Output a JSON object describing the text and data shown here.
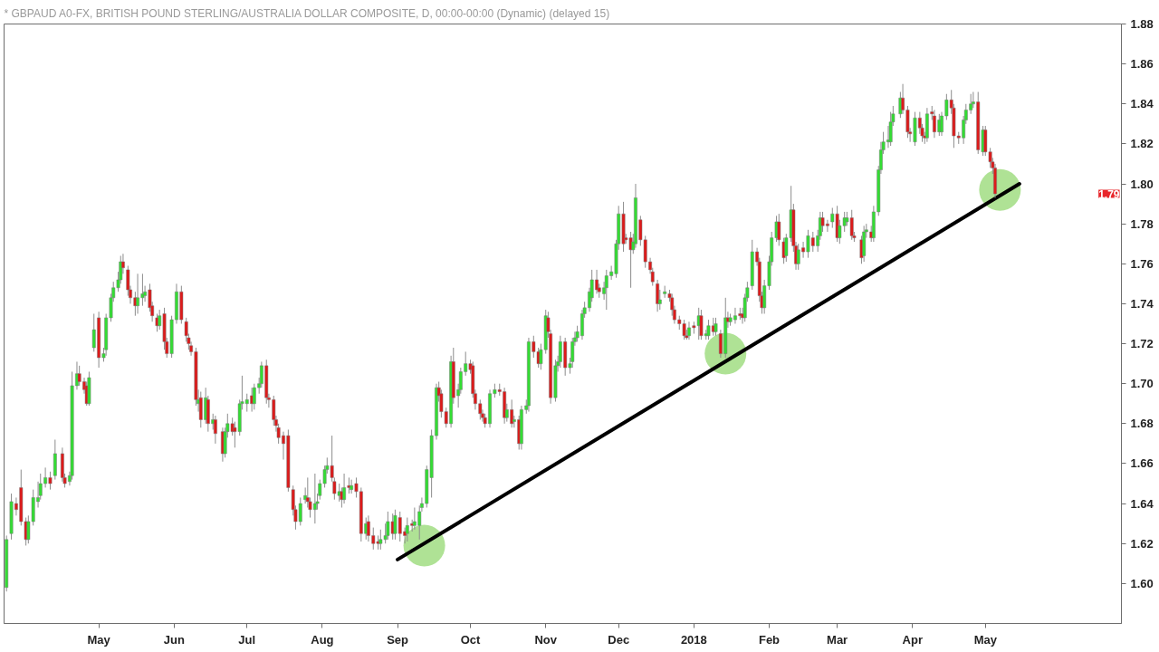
{
  "chart_data": {
    "type": "candlestick",
    "title": "* GBPAUD A0-FX, BRITISH POUND STERLING/AUSTRALIA DOLLAR COMPOSITE, D, 00:00-00:00 (Dynamic) (delayed 15)",
    "x": [
      "2017-03-24",
      "2017-03-26",
      "2017-03-28",
      "2017-03-30",
      "2017-04-01",
      "2017-04-02",
      "2017-04-04",
      "2017-04-06",
      "2017-04-07",
      "2017-04-09",
      "2017-04-11",
      "2017-04-13",
      "2017-04-16",
      "2017-04-17",
      "2017-04-19",
      "2017-04-20",
      "2017-04-22",
      "2017-04-23",
      "2017-04-25",
      "2017-04-26",
      "2017-04-27",
      "2017-04-29",
      "2017-05-01",
      "2017-05-03",
      "2017-05-04",
      "2017-05-06",
      "2017-05-07",
      "2017-05-09",
      "2017-05-10",
      "2017-05-11",
      "2017-05-13",
      "2017-05-14",
      "2017-05-16",
      "2017-05-17",
      "2017-05-19",
      "2017-05-20",
      "2017-05-22",
      "2017-05-23",
      "2017-05-25",
      "2017-05-26",
      "2017-05-28",
      "2017-05-29",
      "2017-05-31",
      "2017-06-02",
      "2017-06-04",
      "2017-06-06",
      "2017-06-07",
      "2017-06-08",
      "2017-06-10",
      "2017-06-11",
      "2017-06-12",
      "2017-06-14",
      "2017-06-15",
      "2017-06-17",
      "2017-06-18",
      "2017-06-21",
      "2017-06-22",
      "2017-06-23",
      "2017-06-25",
      "2017-06-26",
      "2017-06-28",
      "2017-06-29",
      "2017-07-01",
      "2017-07-03",
      "2017-07-04",
      "2017-07-06",
      "2017-07-07",
      "2017-07-09",
      "2017-07-10",
      "2017-07-12",
      "2017-07-13",
      "2017-07-14",
      "2017-07-16",
      "2017-07-18",
      "2017-07-20",
      "2017-07-21",
      "2017-07-23",
      "2017-07-25",
      "2017-07-26",
      "2017-07-27",
      "2017-07-29",
      "2017-07-30",
      "2017-07-31",
      "2017-08-02",
      "2017-08-03",
      "2017-08-05",
      "2017-08-06",
      "2017-08-08",
      "2017-08-09",
      "2017-08-10",
      "2017-08-12",
      "2017-08-13",
      "2017-08-15",
      "2017-08-17",
      "2017-08-19",
      "2017-08-20",
      "2017-08-22",
      "2017-08-24",
      "2017-08-25",
      "2017-08-27",
      "2017-08-28",
      "2017-08-30",
      "2017-08-31",
      "2017-09-02",
      "2017-09-04",
      "2017-09-05",
      "2017-09-07",
      "2017-09-08",
      "2017-09-10",
      "2017-09-11",
      "2017-09-13",
      "2017-09-15",
      "2017-09-17",
      "2017-09-18",
      "2017-09-19",
      "2017-09-21",
      "2017-09-23",
      "2017-09-24",
      "2017-09-26",
      "2017-09-27",
      "2017-09-29",
      "2017-10-01",
      "2017-10-02",
      "2017-10-03",
      "2017-10-05",
      "2017-10-06",
      "2017-10-07",
      "2017-10-09",
      "2017-10-11",
      "2017-10-13",
      "2017-10-15",
      "2017-10-16",
      "2017-10-18",
      "2017-10-19",
      "2017-10-21",
      "2017-10-22",
      "2017-10-24",
      "2017-10-25",
      "2017-10-27",
      "2017-10-29",
      "2017-10-30",
      "2017-11-01",
      "2017-11-02",
      "2017-11-03",
      "2017-11-05",
      "2017-11-06",
      "2017-11-07",
      "2017-11-09",
      "2017-11-11",
      "2017-11-12",
      "2017-11-13",
      "2017-11-14",
      "2017-11-16",
      "2017-11-17",
      "2017-11-19",
      "2017-11-20",
      "2017-11-22",
      "2017-11-23",
      "2017-11-25",
      "2017-11-26",
      "2017-11-28",
      "2017-11-30",
      "2017-12-01",
      "2017-12-03",
      "2017-12-04",
      "2017-12-06",
      "2017-12-07",
      "2017-12-08",
      "2017-12-10",
      "2017-12-12",
      "2017-12-14",
      "2017-12-15",
      "2017-12-17",
      "2017-12-18",
      "2017-12-20",
      "2017-12-22",
      "2017-12-23",
      "2017-12-24",
      "2017-12-26",
      "2017-12-28",
      "2017-12-29",
      "2017-12-30",
      "2018-01-01",
      "2018-01-03",
      "2018-01-04",
      "2018-01-06",
      "2018-01-07",
      "2018-01-09",
      "2018-01-10",
      "2018-01-12",
      "2018-01-14",
      "2018-01-15",
      "2018-01-16",
      "2018-01-18",
      "2018-01-20",
      "2018-01-21",
      "2018-01-22",
      "2018-01-23",
      "2018-01-25",
      "2018-01-27",
      "2018-01-28",
      "2018-01-29",
      "2018-01-30",
      "2018-02-01",
      "2018-02-02",
      "2018-02-04",
      "2018-02-05",
      "2018-02-07",
      "2018-02-08",
      "2018-02-10",
      "2018-02-11",
      "2018-02-12",
      "2018-02-13",
      "2018-02-15",
      "2018-02-17",
      "2018-02-19",
      "2018-02-21",
      "2018-02-22",
      "2018-02-23",
      "2018-02-25",
      "2018-02-27",
      "2018-03-01",
      "2018-03-02",
      "2018-03-04",
      "2018-03-05",
      "2018-03-07",
      "2018-03-08",
      "2018-03-11",
      "2018-03-12",
      "2018-03-13",
      "2018-03-15",
      "2018-03-16",
      "2018-03-18",
      "2018-03-19",
      "2018-03-20",
      "2018-03-22",
      "2018-03-23",
      "2018-03-24",
      "2018-03-27",
      "2018-03-28",
      "2018-03-30",
      "2018-03-31",
      "2018-04-02",
      "2018-04-04",
      "2018-04-05",
      "2018-04-06",
      "2018-04-07",
      "2018-04-09",
      "2018-04-10",
      "2018-04-12",
      "2018-04-13",
      "2018-04-15",
      "2018-04-17",
      "2018-04-18",
      "2018-04-20",
      "2018-04-22",
      "2018-04-23",
      "2018-04-25",
      "2018-04-26",
      "2018-04-28",
      "2018-04-30",
      "2018-05-01",
      "2018-05-03",
      "2018-05-04",
      "2018-05-05"
    ],
    "ohlc": [
      [
        1.598,
        1.624,
        1.596,
        1.622
      ],
      [
        1.625,
        1.645,
        1.622,
        1.641
      ],
      [
        1.64,
        1.643,
        1.634,
        1.637
      ],
      [
        1.648,
        1.657,
        1.629,
        1.631
      ],
      [
        1.631,
        1.633,
        1.619,
        1.622
      ],
      [
        1.622,
        1.634,
        1.62,
        1.631
      ],
      [
        1.631,
        1.647,
        1.629,
        1.643
      ],
      [
        1.641,
        1.651,
        1.638,
        1.643
      ],
      [
        1.644,
        1.655,
        1.642,
        1.65
      ],
      [
        1.65,
        1.658,
        1.648,
        1.653
      ],
      [
        1.653,
        1.656,
        1.647,
        1.65
      ],
      [
        1.654,
        1.672,
        1.652,
        1.665
      ],
      [
        1.665,
        1.668,
        1.651,
        1.653
      ],
      [
        1.653,
        1.655,
        1.648,
        1.65
      ],
      [
        1.651,
        1.656,
        1.649,
        1.654
      ],
      [
        1.654,
        1.706,
        1.652,
        1.699
      ],
      [
        1.699,
        1.711,
        1.697,
        1.705
      ],
      [
        1.705,
        1.709,
        1.699,
        1.701
      ],
      [
        1.701,
        1.703,
        1.695,
        1.697
      ],
      [
        1.699,
        1.701,
        1.689,
        1.69
      ],
      [
        1.69,
        1.706,
        1.689,
        1.703
      ],
      [
        1.718,
        1.735,
        1.716,
        1.727
      ],
      [
        1.733,
        1.736,
        1.708,
        1.713
      ],
      [
        1.713,
        1.718,
        1.711,
        1.715
      ],
      [
        1.717,
        1.735,
        1.714,
        1.733
      ],
      [
        1.733,
        1.745,
        1.731,
        1.743
      ],
      [
        1.743,
        1.751,
        1.741,
        1.748
      ],
      [
        1.748,
        1.756,
        1.746,
        1.752
      ],
      [
        1.752,
        1.764,
        1.75,
        1.761
      ],
      [
        1.761,
        1.765,
        1.755,
        1.758
      ],
      [
        1.757,
        1.759,
        1.744,
        1.747
      ],
      [
        1.747,
        1.749,
        1.74,
        1.743
      ],
      [
        1.743,
        1.746,
        1.734,
        1.739
      ],
      [
        1.739,
        1.755,
        1.735,
        1.743
      ],
      [
        1.743,
        1.755,
        1.739,
        1.745
      ],
      [
        1.744,
        1.749,
        1.741,
        1.746
      ],
      [
        1.747,
        1.75,
        1.736,
        1.738
      ],
      [
        1.739,
        1.741,
        1.731,
        1.734
      ],
      [
        1.733,
        1.735,
        1.726,
        1.729
      ],
      [
        1.729,
        1.737,
        1.727,
        1.734
      ],
      [
        1.735,
        1.738,
        1.717,
        1.721
      ],
      [
        1.721,
        1.723,
        1.713,
        1.715
      ],
      [
        1.715,
        1.734,
        1.713,
        1.732
      ],
      [
        1.732,
        1.75,
        1.73,
        1.746
      ],
      [
        1.746,
        1.749,
        1.73,
        1.732
      ],
      [
        1.731,
        1.733,
        1.721,
        1.724
      ],
      [
        1.723,
        1.725,
        1.717,
        1.72
      ],
      [
        1.719,
        1.721,
        1.714,
        1.716
      ],
      [
        1.716,
        1.718,
        1.689,
        1.692
      ],
      [
        1.69,
        1.697,
        1.686,
        1.692
      ],
      [
        1.693,
        1.696,
        1.678,
        1.682
      ],
      [
        1.682,
        1.698,
        1.68,
        1.693
      ],
      [
        1.692,
        1.694,
        1.676,
        1.68
      ],
      [
        1.68,
        1.685,
        1.677,
        1.682
      ],
      [
        1.682,
        1.684,
        1.67,
        1.675
      ],
      [
        1.676,
        1.678,
        1.661,
        1.665
      ],
      [
        1.665,
        1.678,
        1.663,
        1.676
      ],
      [
        1.676,
        1.685,
        1.673,
        1.68
      ],
      [
        1.68,
        1.683,
        1.674,
        1.676
      ],
      [
        1.678,
        1.681,
        1.668,
        1.676
      ],
      [
        1.676,
        1.692,
        1.674,
        1.69
      ],
      [
        1.69,
        1.704,
        1.687,
        1.691
      ],
      [
        1.69,
        1.695,
        1.686,
        1.692
      ],
      [
        1.694,
        1.698,
        1.686,
        1.69
      ],
      [
        1.69,
        1.7,
        1.687,
        1.698
      ],
      [
        1.698,
        1.703,
        1.695,
        1.7
      ],
      [
        1.7,
        1.711,
        1.698,
        1.709
      ],
      [
        1.709,
        1.712,
        1.69,
        1.693
      ],
      [
        1.693,
        1.695,
        1.688,
        1.692
      ],
      [
        1.692,
        1.694,
        1.679,
        1.682
      ],
      [
        1.682,
        1.684,
        1.676,
        1.679
      ],
      [
        1.678,
        1.68,
        1.67,
        1.673
      ],
      [
        1.674,
        1.676,
        1.662,
        1.67
      ],
      [
        1.674,
        1.677,
        1.646,
        1.648
      ],
      [
        1.647,
        1.649,
        1.634,
        1.637
      ],
      [
        1.637,
        1.639,
        1.627,
        1.631
      ],
      [
        1.631,
        1.643,
        1.629,
        1.64
      ],
      [
        1.642,
        1.648,
        1.64,
        1.644
      ],
      [
        1.643,
        1.653,
        1.638,
        1.641
      ],
      [
        1.641,
        1.643,
        1.633,
        1.637
      ],
      [
        1.637,
        1.655,
        1.63,
        1.64
      ],
      [
        1.64,
        1.645,
        1.637,
        1.641
      ],
      [
        1.644,
        1.652,
        1.642,
        1.65
      ],
      [
        1.65,
        1.659,
        1.648,
        1.657
      ],
      [
        1.657,
        1.663,
        1.655,
        1.659
      ],
      [
        1.659,
        1.674,
        1.651,
        1.653
      ],
      [
        1.651,
        1.653,
        1.642,
        1.645
      ],
      [
        1.644,
        1.65,
        1.641,
        1.646
      ],
      [
        1.646,
        1.648,
        1.638,
        1.642
      ],
      [
        1.642,
        1.655,
        1.64,
        1.648
      ],
      [
        1.649,
        1.653,
        1.645,
        1.648
      ],
      [
        1.647,
        1.652,
        1.645,
        1.649
      ],
      [
        1.65,
        1.653,
        1.643,
        1.646
      ],
      [
        1.646,
        1.648,
        1.621,
        1.625
      ],
      [
        1.625,
        1.633,
        1.622,
        1.63
      ],
      [
        1.631,
        1.634,
        1.621,
        1.624
      ],
      [
        1.624,
        1.628,
        1.617,
        1.62
      ],
      [
        1.621,
        1.624,
        1.617,
        1.62
      ],
      [
        1.62,
        1.627,
        1.617,
        1.622
      ],
      [
        1.622,
        1.63,
        1.62,
        1.624
      ],
      [
        1.624,
        1.636,
        1.622,
        1.631
      ],
      [
        1.631,
        1.635,
        1.622,
        1.625
      ],
      [
        1.625,
        1.637,
        1.622,
        1.634
      ],
      [
        1.633,
        1.636,
        1.621,
        1.625
      ],
      [
        1.626,
        1.628,
        1.62,
        1.624
      ],
      [
        1.625,
        1.633,
        1.621,
        1.629
      ],
      [
        1.63,
        1.632,
        1.626,
        1.629
      ],
      [
        1.629,
        1.638,
        1.627,
        1.631
      ],
      [
        1.629,
        1.639,
        1.622,
        1.636
      ],
      [
        1.638,
        1.643,
        1.636,
        1.64
      ],
      [
        1.64,
        1.659,
        1.638,
        1.657
      ],
      [
        1.653,
        1.677,
        1.643,
        1.674
      ],
      [
        1.674,
        1.7,
        1.672,
        1.698
      ],
      [
        1.698,
        1.701,
        1.691,
        1.694
      ],
      [
        1.695,
        1.697,
        1.683,
        1.686
      ],
      [
        1.686,
        1.688,
        1.678,
        1.68
      ],
      [
        1.68,
        1.714,
        1.678,
        1.711
      ],
      [
        1.711,
        1.718,
        1.69,
        1.693
      ],
      [
        1.694,
        1.7,
        1.688,
        1.697
      ],
      [
        1.697,
        1.708,
        1.695,
        1.706
      ],
      [
        1.706,
        1.716,
        1.704,
        1.71
      ],
      [
        1.71,
        1.712,
        1.705,
        1.707
      ],
      [
        1.709,
        1.711,
        1.693,
        1.695
      ],
      [
        1.695,
        1.697,
        1.687,
        1.69
      ],
      [
        1.69,
        1.692,
        1.682,
        1.685
      ],
      [
        1.685,
        1.687,
        1.681,
        1.683
      ],
      [
        1.683,
        1.685,
        1.678,
        1.68
      ],
      [
        1.68,
        1.697,
        1.678,
        1.695
      ],
      [
        1.695,
        1.7,
        1.693,
        1.697
      ],
      [
        1.697,
        1.7,
        1.694,
        1.696
      ],
      [
        1.696,
        1.698,
        1.68,
        1.683
      ],
      [
        1.683,
        1.69,
        1.681,
        1.687
      ],
      [
        1.687,
        1.692,
        1.678,
        1.68
      ],
      [
        1.681,
        1.684,
        1.678,
        1.682
      ],
      [
        1.682,
        1.684,
        1.667,
        1.67
      ],
      [
        1.67,
        1.689,
        1.667,
        1.687
      ],
      [
        1.687,
        1.692,
        1.685,
        1.689
      ],
      [
        1.689,
        1.723,
        1.686,
        1.721
      ],
      [
        1.721,
        1.724,
        1.713,
        1.716
      ],
      [
        1.716,
        1.718,
        1.708,
        1.71
      ],
      [
        1.71,
        1.72,
        1.707,
        1.717
      ],
      [
        1.717,
        1.737,
        1.715,
        1.734
      ],
      [
        1.733,
        1.736,
        1.723,
        1.726
      ],
      [
        1.725,
        1.727,
        1.69,
        1.693
      ],
      [
        1.693,
        1.712,
        1.691,
        1.709
      ],
      [
        1.709,
        1.714,
        1.706,
        1.711
      ],
      [
        1.711,
        1.724,
        1.708,
        1.721
      ],
      [
        1.721,
        1.723,
        1.704,
        1.708
      ],
      [
        1.708,
        1.713,
        1.705,
        1.71
      ],
      [
        1.711,
        1.723,
        1.708,
        1.721
      ],
      [
        1.721,
        1.726,
        1.719,
        1.723
      ],
      [
        1.723,
        1.729,
        1.721,
        1.726
      ],
      [
        1.724,
        1.737,
        1.722,
        1.735
      ],
      [
        1.735,
        1.741,
        1.733,
        1.738
      ],
      [
        1.738,
        1.748,
        1.736,
        1.746
      ],
      [
        1.743,
        1.757,
        1.741,
        1.752
      ],
      [
        1.752,
        1.757,
        1.745,
        1.747
      ],
      [
        1.748,
        1.75,
        1.743,
        1.746
      ],
      [
        1.745,
        1.751,
        1.742,
        1.748
      ],
      [
        1.748,
        1.757,
        1.737,
        1.754
      ],
      [
        1.754,
        1.759,
        1.752,
        1.756
      ],
      [
        1.755,
        1.772,
        1.753,
        1.77
      ],
      [
        1.77,
        1.789,
        1.767,
        1.785
      ],
      [
        1.785,
        1.791,
        1.766,
        1.77
      ],
      [
        1.773,
        1.775,
        1.77,
        1.772
      ],
      [
        1.773,
        1.776,
        1.748,
        1.767
      ],
      [
        1.767,
        1.775,
        1.765,
        1.771
      ],
      [
        1.77,
        1.8,
        1.768,
        1.793
      ],
      [
        1.782,
        1.784,
        1.769,
        1.772
      ],
      [
        1.772,
        1.774,
        1.758,
        1.761
      ],
      [
        1.761,
        1.763,
        1.755,
        1.757
      ],
      [
        1.756,
        1.758,
        1.749,
        1.751
      ],
      [
        1.75,
        1.752,
        1.736,
        1.74
      ],
      [
        1.74,
        1.747,
        1.737,
        1.742
      ],
      [
        1.745,
        1.749,
        1.743,
        1.746
      ],
      [
        1.745,
        1.747,
        1.741,
        1.743
      ],
      [
        1.743,
        1.745,
        1.734,
        1.737
      ],
      [
        1.737,
        1.739,
        1.73,
        1.732
      ],
      [
        1.732,
        1.734,
        1.727,
        1.73
      ],
      [
        1.73,
        1.732,
        1.722,
        1.724
      ],
      [
        1.724,
        1.727,
        1.722,
        1.723
      ],
      [
        1.724,
        1.731,
        1.722,
        1.728
      ],
      [
        1.729,
        1.731,
        1.725,
        1.728
      ],
      [
        1.729,
        1.738,
        1.722,
        1.734
      ],
      [
        1.734,
        1.737,
        1.722,
        1.724
      ],
      [
        1.724,
        1.727,
        1.722,
        1.725
      ],
      [
        1.724,
        1.732,
        1.722,
        1.729
      ],
      [
        1.729,
        1.733,
        1.724,
        1.726
      ],
      [
        1.726,
        1.733,
        1.724,
        1.73
      ],
      [
        1.725,
        1.727,
        1.713,
        1.715
      ],
      [
        1.715,
        1.743,
        1.713,
        1.733
      ],
      [
        1.733,
        1.736,
        1.728,
        1.731
      ],
      [
        1.731,
        1.735,
        1.729,
        1.733
      ],
      [
        1.732,
        1.738,
        1.73,
        1.734
      ],
      [
        1.735,
        1.738,
        1.732,
        1.734
      ],
      [
        1.735,
        1.738,
        1.73,
        1.733
      ],
      [
        1.733,
        1.745,
        1.731,
        1.743
      ],
      [
        1.743,
        1.751,
        1.741,
        1.748
      ],
      [
        1.749,
        1.772,
        1.747,
        1.766
      ],
      [
        1.766,
        1.768,
        1.759,
        1.761
      ],
      [
        1.761,
        1.763,
        1.741,
        1.744
      ],
      [
        1.744,
        1.746,
        1.735,
        1.738
      ],
      [
        1.738,
        1.752,
        1.735,
        1.749
      ],
      [
        1.749,
        1.764,
        1.747,
        1.761
      ],
      [
        1.761,
        1.776,
        1.759,
        1.773
      ],
      [
        1.773,
        1.784,
        1.771,
        1.781
      ],
      [
        1.781,
        1.785,
        1.769,
        1.772
      ],
      [
        1.771,
        1.773,
        1.76,
        1.763
      ],
      [
        1.764,
        1.775,
        1.761,
        1.773
      ],
      [
        1.773,
        1.799,
        1.771,
        1.787
      ],
      [
        1.787,
        1.79,
        1.766,
        1.769
      ],
      [
        1.769,
        1.771,
        1.757,
        1.76
      ],
      [
        1.76,
        1.77,
        1.757,
        1.767
      ],
      [
        1.768,
        1.771,
        1.763,
        1.766
      ],
      [
        1.766,
        1.777,
        1.763,
        1.774
      ],
      [
        1.773,
        1.776,
        1.766,
        1.769
      ],
      [
        1.769,
        1.777,
        1.766,
        1.774
      ],
      [
        1.774,
        1.786,
        1.772,
        1.783
      ],
      [
        1.783,
        1.786,
        1.776,
        1.779
      ],
      [
        1.78,
        1.782,
        1.776,
        1.779
      ],
      [
        1.781,
        1.788,
        1.778,
        1.785
      ],
      [
        1.785,
        1.789,
        1.771,
        1.773
      ],
      [
        1.773,
        1.782,
        1.77,
        1.779
      ],
      [
        1.779,
        1.786,
        1.776,
        1.783
      ],
      [
        1.781,
        1.786,
        1.779,
        1.783
      ],
      [
        1.783,
        1.787,
        1.772,
        1.774
      ],
      [
        1.774,
        1.776,
        1.771,
        1.773
      ],
      [
        1.772,
        1.774,
        1.76,
        1.763
      ],
      [
        1.764,
        1.779,
        1.761,
        1.776
      ],
      [
        1.776,
        1.78,
        1.773,
        1.777
      ],
      [
        1.776,
        1.779,
        1.771,
        1.773
      ],
      [
        1.773,
        1.789,
        1.771,
        1.786
      ],
      [
        1.786,
        1.809,
        1.784,
        1.807
      ],
      [
        1.807,
        1.821,
        1.805,
        1.817
      ],
      [
        1.817,
        1.826,
        1.815,
        1.821
      ],
      [
        1.821,
        1.829,
        1.818,
        1.822
      ],
      [
        1.821,
        1.836,
        1.819,
        1.831
      ],
      [
        1.831,
        1.839,
        1.829,
        1.835
      ],
      [
        1.835,
        1.846,
        1.833,
        1.843
      ],
      [
        1.843,
        1.85,
        1.835,
        1.837
      ],
      [
        1.837,
        1.839,
        1.823,
        1.826
      ],
      [
        1.826,
        1.828,
        1.821,
        1.825
      ],
      [
        1.821,
        1.836,
        1.819,
        1.833
      ],
      [
        1.833,
        1.836,
        1.825,
        1.828
      ],
      [
        1.828,
        1.83,
        1.821,
        1.824
      ],
      [
        1.824,
        1.826,
        1.82,
        1.823
      ],
      [
        1.823,
        1.838,
        1.821,
        1.835
      ],
      [
        1.836,
        1.839,
        1.832,
        1.835
      ],
      [
        1.834,
        1.837,
        1.823,
        1.826
      ],
      [
        1.826,
        1.835,
        1.824,
        1.832
      ],
      [
        1.826,
        1.836,
        1.824,
        1.834
      ],
      [
        1.834,
        1.845,
        1.832,
        1.842
      ],
      [
        1.842,
        1.847,
        1.835,
        1.838
      ],
      [
        1.838,
        1.84,
        1.818,
        1.824
      ],
      [
        1.824,
        1.826,
        1.82,
        1.823
      ],
      [
        1.823,
        1.834,
        1.82,
        1.832
      ],
      [
        1.832,
        1.84,
        1.83,
        1.837
      ],
      [
        1.837,
        1.845,
        1.835,
        1.84
      ],
      [
        1.84,
        1.846,
        1.838,
        1.841
      ],
      [
        1.841,
        1.846,
        1.815,
        1.817
      ],
      [
        1.816,
        1.829,
        1.814,
        1.827
      ],
      [
        1.827,
        1.829,
        1.814,
        1.816
      ],
      [
        1.816,
        1.818,
        1.808,
        1.811
      ],
      [
        1.811,
        1.813,
        1.805,
        1.808
      ],
      [
        1.808,
        1.81,
        1.793,
        1.795
      ]
    ],
    "colors": [
      "#33dd33",
      "#33dd33",
      "#dd1a1a",
      "#dd1a1a",
      "#dd1a1a",
      "#33dd33",
      "#33dd33",
      "#33dd33",
      "#33dd33",
      "#33dd33",
      "#dd1a1a",
      "#33dd33",
      "#dd1a1a",
      "#dd1a1a",
      "#33dd33",
      "#33dd33",
      "#33dd33",
      "#dd1a1a",
      "#dd1a1a",
      "#dd1a1a",
      "#33dd33",
      "#33dd33",
      "#dd1a1a",
      "#33dd33",
      "#33dd33",
      "#33dd33",
      "#33dd33",
      "#33dd33",
      "#33dd33",
      "#dd1a1a",
      "#dd1a1a",
      "#dd1a1a",
      "#dd1a1a",
      "#33dd33",
      "#33dd33",
      "#33dd33",
      "#dd1a1a",
      "#dd1a1a",
      "#dd1a1a",
      "#33dd33",
      "#dd1a1a",
      "#dd1a1a",
      "#33dd33",
      "#33dd33",
      "#dd1a1a",
      "#dd1a1a",
      "#dd1a1a",
      "#dd1a1a",
      "#dd1a1a",
      "#33dd33",
      "#dd1a1a",
      "#33dd33",
      "#dd1a1a",
      "#33dd33",
      "#dd1a1a",
      "#dd1a1a",
      "#33dd33",
      "#33dd33",
      "#dd1a1a",
      "#dd1a1a",
      "#33dd33",
      "#33dd33",
      "#33dd33",
      "#dd1a1a",
      "#33dd33",
      "#33dd33",
      "#33dd33",
      "#dd1a1a",
      "#dd1a1a",
      "#dd1a1a",
      "#dd1a1a",
      "#dd1a1a",
      "#dd1a1a",
      "#dd1a1a",
      "#dd1a1a",
      "#dd1a1a",
      "#33dd33",
      "#33dd33",
      "#dd1a1a",
      "#dd1a1a",
      "#33dd33",
      "#33dd33",
      "#33dd33",
      "#33dd33",
      "#33dd33",
      "#dd1a1a",
      "#dd1a1a",
      "#33dd33",
      "#dd1a1a",
      "#33dd33",
      "#dd1a1a",
      "#33dd33",
      "#dd1a1a",
      "#dd1a1a",
      "#33dd33",
      "#dd1a1a",
      "#dd1a1a",
      "#dd1a1a",
      "#33dd33",
      "#33dd33",
      "#33dd33",
      "#dd1a1a",
      "#33dd33",
      "#dd1a1a",
      "#dd1a1a",
      "#33dd33",
      "#dd1a1a",
      "#33dd33",
      "#33dd33",
      "#33dd33",
      "#33dd33",
      "#33dd33",
      "#33dd33",
      "#dd1a1a",
      "#dd1a1a",
      "#dd1a1a",
      "#33dd33",
      "#dd1a1a",
      "#33dd33",
      "#33dd33",
      "#33dd33",
      "#dd1a1a",
      "#dd1a1a",
      "#dd1a1a",
      "#dd1a1a",
      "#dd1a1a",
      "#dd1a1a",
      "#33dd33",
      "#33dd33",
      "#dd1a1a",
      "#dd1a1a",
      "#33dd33",
      "#dd1a1a",
      "#33dd33",
      "#dd1a1a",
      "#33dd33",
      "#33dd33",
      "#33dd33",
      "#dd1a1a",
      "#dd1a1a",
      "#33dd33",
      "#33dd33",
      "#dd1a1a",
      "#dd1a1a",
      "#33dd33",
      "#33dd33",
      "#33dd33",
      "#dd1a1a",
      "#33dd33",
      "#33dd33",
      "#33dd33",
      "#33dd33",
      "#33dd33",
      "#33dd33",
      "#33dd33",
      "#33dd33",
      "#dd1a1a",
      "#dd1a1a",
      "#33dd33",
      "#33dd33",
      "#33dd33",
      "#33dd33",
      "#33dd33",
      "#dd1a1a",
      "#dd1a1a",
      "#dd1a1a",
      "#33dd33",
      "#33dd33",
      "#dd1a1a",
      "#dd1a1a",
      "#dd1a1a",
      "#dd1a1a",
      "#dd1a1a",
      "#33dd33",
      "#33dd33",
      "#dd1a1a",
      "#dd1a1a",
      "#dd1a1a",
      "#dd1a1a",
      "#dd1a1a",
      "#dd1a1a",
      "#33dd33",
      "#dd1a1a",
      "#33dd33",
      "#dd1a1a",
      "#33dd33",
      "#33dd33",
      "#dd1a1a",
      "#33dd33",
      "#dd1a1a",
      "#33dd33",
      "#dd1a1a",
      "#33dd33",
      "#33dd33",
      "#dd1a1a",
      "#dd1a1a",
      "#33dd33",
      "#33dd33",
      "#33dd33",
      "#dd1a1a",
      "#dd1a1a",
      "#dd1a1a",
      "#33dd33",
      "#33dd33",
      "#33dd33",
      "#33dd33",
      "#dd1a1a",
      "#dd1a1a",
      "#33dd33",
      "#33dd33",
      "#dd1a1a",
      "#dd1a1a",
      "#33dd33",
      "#dd1a1a",
      "#33dd33",
      "#dd1a1a",
      "#33dd33",
      "#33dd33",
      "#dd1a1a",
      "#dd1a1a",
      "#33dd33",
      "#dd1a1a",
      "#33dd33",
      "#33dd33",
      "#33dd33",
      "#dd1a1a",
      "#dd1a1a",
      "#dd1a1a",
      "#33dd33",
      "#33dd33",
      "#dd1a1a",
      "#33dd33",
      "#33dd33",
      "#33dd33",
      "#33dd33",
      "#33dd33",
      "#33dd33",
      "#33dd33",
      "#33dd33",
      "#dd1a1a",
      "#dd1a1a",
      "#dd1a1a",
      "#33dd33",
      "#dd1a1a",
      "#dd1a1a",
      "#dd1a1a",
      "#33dd33",
      "#dd1a1a",
      "#dd1a1a",
      "#33dd33",
      "#33dd33",
      "#33dd33",
      "#dd1a1a",
      "#dd1a1a",
      "#dd1a1a",
      "#33dd33",
      "#33dd33",
      "#33dd33",
      "#33dd33",
      "#dd1a1a",
      "#33dd33",
      "#dd1a1a",
      "#dd1a1a",
      "#dd1a1a",
      "#dd1a1a"
    ],
    "series": [
      {
        "type": "scatter",
        "marker": "circle",
        "color": "#9bdb7b",
        "x": [
          "2017-09-12",
          "2018-01-14",
          "2018-05-07"
        ],
        "values": [
          1.619,
          1.715,
          1.797
        ]
      },
      {
        "type": "line",
        "color": "#000000",
        "x": [
          "2017-09-01",
          "2018-05-15"
        ],
        "values": [
          1.612,
          1.8
        ]
      }
    ],
    "xlim": [
      "2017-03-23",
      "2018-06-26"
    ],
    "xticks": [
      {
        "value": "2017-05-01",
        "label": "May"
      },
      {
        "value": "2017-06-01",
        "label": "Jun"
      },
      {
        "value": "2017-07-01",
        "label": "Jul"
      },
      {
        "value": "2017-08-01",
        "label": "Aug"
      },
      {
        "value": "2017-09-01",
        "label": "Sep"
      },
      {
        "value": "2017-10-01",
        "label": "Oct"
      },
      {
        "value": "2017-11-01",
        "label": "Nov"
      },
      {
        "value": "2017-12-01",
        "label": "Dec"
      },
      {
        "value": "2018-01-01",
        "label": "2018"
      },
      {
        "value": "2018-02-01",
        "label": "Feb"
      },
      {
        "value": "2018-03-01",
        "label": "Mar"
      },
      {
        "value": "2018-04-01",
        "label": "Apr"
      },
      {
        "value": "2018-05-01",
        "label": "May"
      }
    ],
    "ylim": [
      1.58,
      1.88
    ],
    "yticks": [
      {
        "value": 1.6,
        "label": "1.60"
      },
      1.62,
      1.64,
      1.66,
      1.68,
      {
        "value": 1.7,
        "label": "1.70"
      },
      1.72,
      1.74,
      1.76,
      1.78,
      {
        "value": 1.8,
        "label": "1.80"
      },
      1.82,
      1.84,
      1.86,
      1.88
    ],
    "annotations": [
      {
        "text": "1.79",
        "y": 1.795
      }
    ],
    "grid": false
  }
}
